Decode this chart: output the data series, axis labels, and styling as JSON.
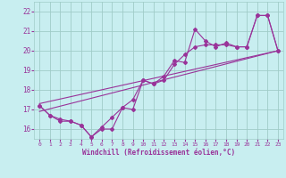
{
  "xlabel": "Windchill (Refroidissement éolien,°C)",
  "xlim": [
    -0.5,
    23.5
  ],
  "ylim": [
    15.5,
    22.5
  ],
  "yticks": [
    16,
    17,
    18,
    19,
    20,
    21,
    22
  ],
  "xticks": [
    0,
    1,
    2,
    3,
    4,
    5,
    6,
    7,
    8,
    9,
    10,
    11,
    12,
    13,
    14,
    15,
    16,
    17,
    18,
    19,
    20,
    21,
    22,
    23
  ],
  "bg_color": "#c8eef0",
  "grid_color": "#a0ccc8",
  "line_color": "#993399",
  "line1_x": [
    0,
    1,
    2,
    3,
    4,
    5,
    6,
    7,
    8,
    9,
    10,
    11,
    12,
    13,
    14,
    15,
    16,
    17,
    18,
    19,
    20,
    21,
    22,
    23
  ],
  "line1_y": [
    17.2,
    16.7,
    16.4,
    16.4,
    16.2,
    15.6,
    16.0,
    16.0,
    17.1,
    17.0,
    18.5,
    18.3,
    18.7,
    19.5,
    19.4,
    21.1,
    20.5,
    20.2,
    20.4,
    20.2,
    20.2,
    21.8,
    21.8,
    20.0
  ],
  "line2_x": [
    0,
    1,
    2,
    3,
    4,
    5,
    6,
    7,
    8,
    9,
    10,
    11,
    12,
    13,
    14,
    15,
    16,
    17,
    18,
    19,
    20,
    21,
    22,
    23
  ],
  "line2_y": [
    17.2,
    16.7,
    16.5,
    16.4,
    16.2,
    15.6,
    16.1,
    16.6,
    17.1,
    17.5,
    18.5,
    18.3,
    18.5,
    19.3,
    19.8,
    20.2,
    20.3,
    20.3,
    20.3,
    20.2,
    20.2,
    21.8,
    21.8,
    20.0
  ],
  "line3_x": [
    0,
    23
  ],
  "line3_y": [
    16.9,
    20.0
  ],
  "line4_x": [
    0,
    23
  ],
  "line4_y": [
    17.3,
    20.0
  ]
}
